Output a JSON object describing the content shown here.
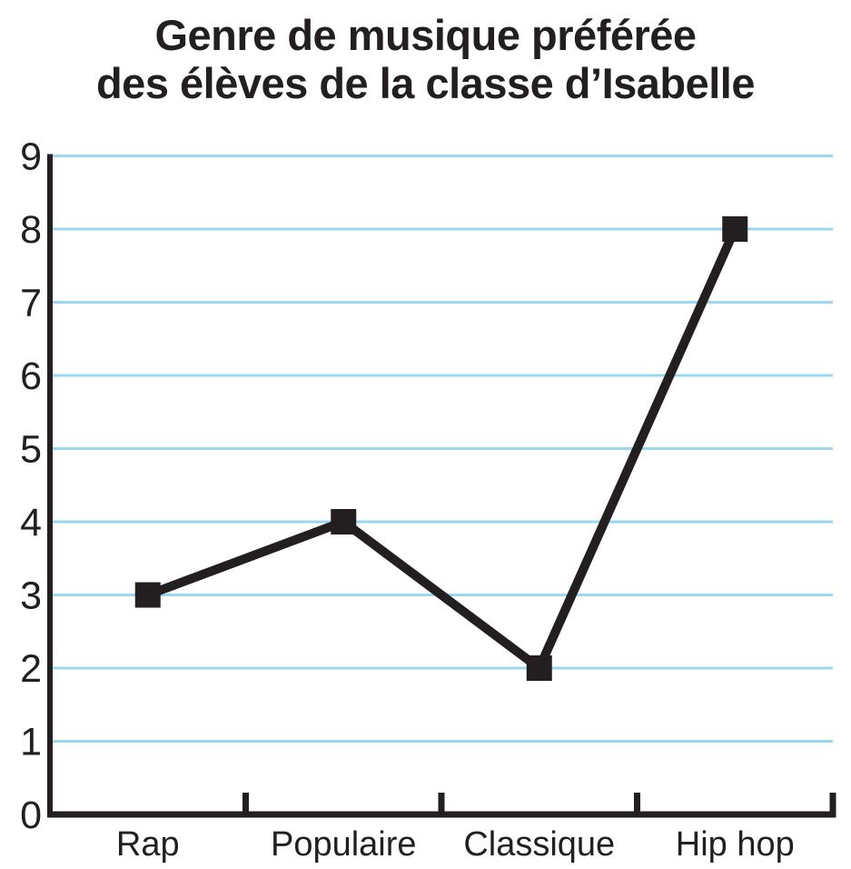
{
  "title": {
    "line1": "Genre de musique préférée",
    "line2": "des élèves de la classe d’Isabelle"
  },
  "colors": {
    "ink": "#231f20",
    "gridline": "#9bd8f0",
    "background": "#ffffff"
  },
  "chart_data": {
    "type": "line",
    "title": "Genre de musique préférée des élèves de la classe d’Isabelle",
    "categories": [
      "Rap",
      "Populaire",
      "Classique",
      "Hip hop"
    ],
    "values": [
      3,
      4,
      2,
      8
    ],
    "xlabel": "",
    "ylabel": "",
    "ylim": [
      0,
      9
    ],
    "ytick_step": 1,
    "y_tick_labels": [
      "0",
      "1",
      "2",
      "3",
      "4",
      "5",
      "6",
      "7",
      "8",
      "9"
    ],
    "grid": "horizontal-only",
    "legend": "none",
    "marker": "square",
    "line_color": "#231f20",
    "gridline_color": "#9bd8f0"
  }
}
